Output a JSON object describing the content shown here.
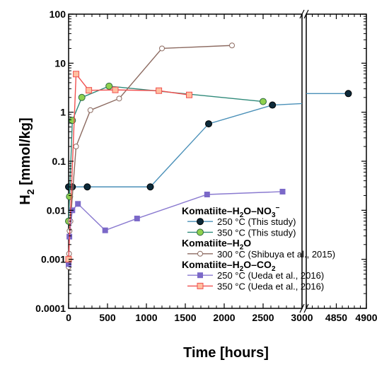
{
  "chart_data": {
    "type": "line",
    "xlabel": "Time [hours]",
    "ylabel": "H2 [mmol/kg]",
    "ylabel_main": "H",
    "ylabel_sub": "2",
    "ylabel_rest": " [mmol/kg]",
    "yscale": "log",
    "ylim": [
      0.0001,
      100
    ],
    "y_ticks": [
      0.0001,
      0.001,
      0.01,
      0.1,
      1,
      10,
      100
    ],
    "y_tick_labels": [
      "0.0001",
      "0.001",
      "0.01",
      "0.1",
      "1",
      "10",
      "100"
    ],
    "x_axis_break": true,
    "xlim_left": [
      0,
      3000
    ],
    "xlim_right": [
      4800,
      4900
    ],
    "x_ticks_left": [
      0,
      500,
      1000,
      1500,
      2000,
      2500,
      3000
    ],
    "x_tick_labels_left": [
      "0",
      "500",
      "1000",
      "1500",
      "2000",
      "2500",
      "3000"
    ],
    "x_ticks_right": [
      4850,
      4900
    ],
    "x_tick_labels_right": [
      "4850",
      "4900"
    ],
    "grid": false,
    "legend_position": "bottom-right",
    "legend_groups": [
      {
        "header": "Komatiite–H2O–NO3⁻",
        "header_main": "Komatiite–H",
        "header_sub1": "2",
        "header_mid": "O–NO",
        "header_sub2": "3",
        "header_sup": "−",
        "series_indices": [
          0,
          1
        ]
      },
      {
        "header": "Komatiite–H2O",
        "header_main": "Komatiite–H",
        "header_sub1": "2",
        "header_mid": "O",
        "series_indices": [
          2
        ]
      },
      {
        "header": "Komatiite–H2O–CO2",
        "header_main": "Komatiite–H",
        "header_sub1": "2",
        "header_mid": "O–CO",
        "header_sub2": "2",
        "series_indices": [
          3,
          4
        ]
      }
    ],
    "series": [
      {
        "name": "250 °C (This study)",
        "color": "#4a90b8",
        "marker": "circle",
        "marker_fill": "#0d2a3a",
        "x": [
          0,
          48,
          240,
          1050,
          1800,
          2620,
          4870
        ],
        "y": [
          0.03,
          0.03,
          0.03,
          0.03,
          0.58,
          1.4,
          2.4
        ],
        "trail_x": [
          2620,
          3000
        ],
        "trail_y": [
          1.4,
          1.5
        ]
      },
      {
        "name": "350 °C (This study)",
        "color": "#2f8a7a",
        "marker": "circle",
        "marker_fill": "#8fd14f",
        "x": [
          0,
          12,
          48,
          170,
          520,
          2500
        ],
        "y": [
          0.006,
          0.019,
          0.68,
          2.0,
          3.4,
          1.65
        ]
      },
      {
        "name": "300 °C (Shibuya et al., 2015)",
        "color": "#8c6a60",
        "marker": "circle",
        "marker_fill": "#ffffff",
        "x": [
          0,
          6,
          12,
          24,
          96,
          280,
          650,
          1200,
          2100
        ],
        "y": [
          0.0007,
          0.0013,
          0.0038,
          0.006,
          0.2,
          1.1,
          1.9,
          20,
          23
        ]
      },
      {
        "name": "250 °C (Ueda et al., 2016)",
        "color": "#8a7ad0",
        "marker": "square",
        "marker_fill": "#7b68c8",
        "x": [
          0,
          10,
          48,
          120,
          470,
          880,
          1780,
          2750
        ],
        "y": [
          0.0008,
          0.0029,
          0.01,
          0.0135,
          0.0039,
          0.0068,
          0.021,
          0.024
        ]
      },
      {
        "name": "350 °C (Ueda et al., 2016)",
        "color": "#f05050",
        "marker": "square",
        "marker_fill": "#ffbfa0",
        "x": [
          0,
          96,
          260,
          600,
          1160,
          1550
        ],
        "y": [
          0.001,
          6.0,
          2.8,
          2.85,
          2.75,
          2.25
        ]
      }
    ]
  }
}
